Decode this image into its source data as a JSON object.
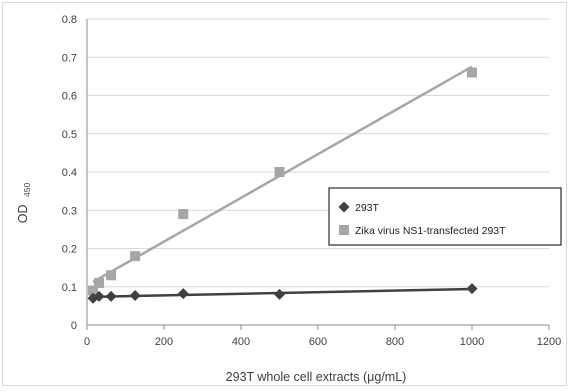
{
  "chart_data": {
    "type": "scatter",
    "xlabel": "293T whole cell extracts (μg/mL)",
    "ylabel_main": "OD",
    "ylabel_sub": "450",
    "xlim": [
      0,
      1200
    ],
    "ylim": [
      0,
      0.8
    ],
    "x_ticks": [
      "0",
      "200",
      "400",
      "600",
      "800",
      "1000",
      "1200"
    ],
    "y_ticks": [
      "0",
      "0.1",
      "0.2",
      "0.3",
      "0.4",
      "0.5",
      "0.6",
      "0.7",
      "0.8"
    ],
    "grid": "horizontal",
    "legend_position": "right",
    "series": [
      {
        "name": "293T",
        "marker": "diamond",
        "color": "#404040",
        "trendline": true,
        "points": [
          {
            "x": 15.6,
            "y": 0.07
          },
          {
            "x": 31.25,
            "y": 0.075
          },
          {
            "x": 62.5,
            "y": 0.075
          },
          {
            "x": 125,
            "y": 0.077
          },
          {
            "x": 250,
            "y": 0.082
          },
          {
            "x": 500,
            "y": 0.08
          },
          {
            "x": 1000,
            "y": 0.095
          }
        ]
      },
      {
        "name": "Zika virus NS1-transfected 293T",
        "marker": "square",
        "color": "#a6a6a6",
        "trendline": true,
        "points": [
          {
            "x": 15.6,
            "y": 0.09
          },
          {
            "x": 31.25,
            "y": 0.11
          },
          {
            "x": 62.5,
            "y": 0.13
          },
          {
            "x": 125,
            "y": 0.18
          },
          {
            "x": 250,
            "y": 0.29
          },
          {
            "x": 500,
            "y": 0.4
          },
          {
            "x": 1000,
            "y": 0.66
          }
        ]
      }
    ]
  }
}
